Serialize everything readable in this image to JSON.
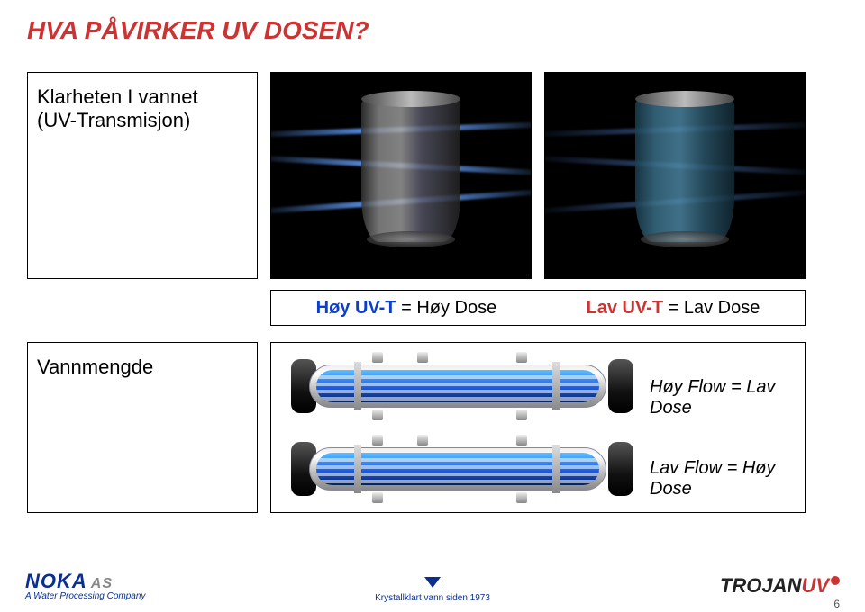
{
  "title": "HVA PÅVIRKER UV DOSEN?",
  "klarhet": {
    "line1": "Klarheten I vannet",
    "line2": "(UV-Transmisjon)"
  },
  "glasses": {
    "clear": {
      "beam_opacity": 1.0,
      "water_colors": [
        "#333",
        "#888",
        "#999",
        "#556",
        "#222"
      ]
    },
    "dirty": {
      "beam_opacity": 0.55,
      "water_colors": [
        "#1a3d4d",
        "#3a6d86",
        "#4b84a1",
        "#2a5468",
        "#122833"
      ]
    }
  },
  "uvt_labels": {
    "left": {
      "pre": "Høy UV-T",
      "post": " = Høy Dose",
      "color": "#0b3ecc"
    },
    "right": {
      "pre": "Lav UV-T",
      "post": " = Lav Dose",
      "color": "#cc3333"
    }
  },
  "vannmengde": "Vannmengde",
  "flow": {
    "pipe_count": 2,
    "tube_lines": 4,
    "colors": {
      "shell": "#bbbbbb",
      "water_top": "#5dc0ff",
      "water_bot": "#06215d",
      "cap": "#111111"
    },
    "top": {
      "pre": "Høy Flow ",
      "post": "= Lav Dose"
    },
    "bot": {
      "pre": "Lav Flow ",
      "post": "= Høy Dose"
    }
  },
  "footer": {
    "noka_name": "NOKA",
    "noka_as": "AS",
    "noka_sub": "A Water Processing Company",
    "tagline": "Krystallklart vann siden 1973",
    "trojan_t": "TROJAN",
    "trojan_uv": "UV",
    "page": "6"
  },
  "colors": {
    "title": "#cc3333",
    "accent_blue": "#0a2f8e",
    "accent_red": "#cc3333"
  }
}
